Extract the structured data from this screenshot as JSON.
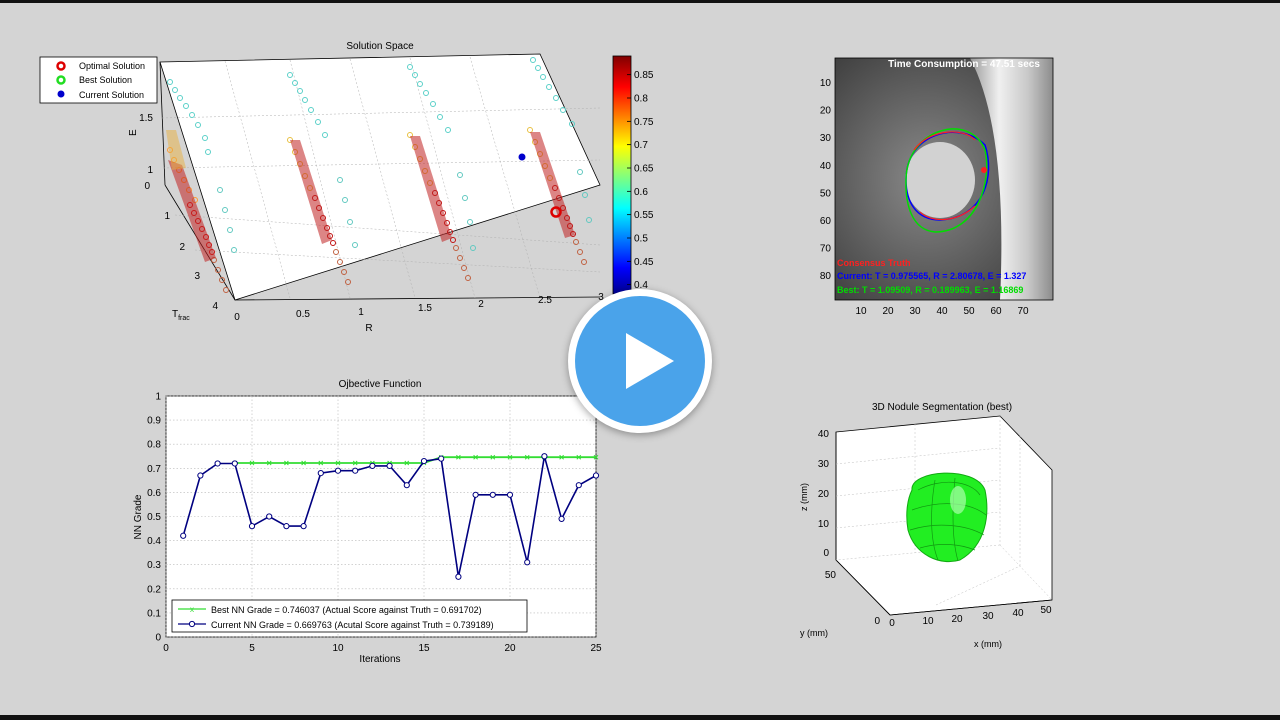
{
  "solution_space": {
    "title": "Solution Space",
    "ylabel": "E",
    "xlabel": "R",
    "tlabel_main": "T",
    "tlabel_sub": "frac",
    "e_ticks": [
      "1.5",
      "1"
    ],
    "t_ticks": [
      "0",
      "1",
      "2",
      "3",
      "4"
    ],
    "r_ticks": [
      "0",
      "0.5",
      "1",
      "1.5",
      "2",
      "2.5",
      "3"
    ],
    "legend": [
      {
        "label": "Optimal Solution",
        "color": "#dd0000"
      },
      {
        "label": "Best Solution",
        "color": "#22dd22"
      },
      {
        "label": "Current Solution",
        "color": "#0000cc"
      }
    ],
    "colorbar_ticks": [
      "0.85",
      "0.8",
      "0.75",
      "0.7",
      "0.65",
      "0.6",
      "0.55",
      "0.5",
      "0.45",
      "0.4"
    ],
    "colorbar_min": 0.38,
    "colorbar_max": 0.89
  },
  "ct_view": {
    "title": "Time Consumption = 47.51 secs",
    "y_ticks": [
      "10",
      "20",
      "30",
      "40",
      "50",
      "60",
      "70",
      "80"
    ],
    "x_ticks": [
      "10",
      "20",
      "30",
      "40",
      "50",
      "60",
      "70"
    ],
    "truth_label": "Consensus Truth",
    "current_label": "Current:  T = 0.975565, R = 2.80678, E = 1.327",
    "best_label": "Best:    T = 1.09509, R = 0.189963, E = 1.16869",
    "truth_color": "#ff2020",
    "current_color": "#0000ff",
    "best_color": "#00dd00"
  },
  "nodule_3d": {
    "title": "3D Nodule Segmentation (best)",
    "zlabel": "z (mm)",
    "ylabel": "y (mm)",
    "xlabel": "x (mm)",
    "z_ticks": [
      "40",
      "30",
      "20",
      "10",
      "0"
    ],
    "y_ticks": [
      "50",
      "0"
    ],
    "x_ticks": [
      "0",
      "10",
      "20",
      "30",
      "40",
      "50"
    ],
    "nodule_color": "#22ee22"
  },
  "chart_data": {
    "type": "line",
    "title": "Ojbective Function",
    "xlabel": "Iterations",
    "ylabel": "NN Grade",
    "xlim": [
      0,
      25
    ],
    "ylim": [
      0,
      1
    ],
    "x_ticks": [
      "0",
      "5",
      "10",
      "15",
      "20",
      "25"
    ],
    "y_ticks": [
      "0",
      "0.1",
      "0.2",
      "0.3",
      "0.4",
      "0.5",
      "0.6",
      "0.7",
      "0.8",
      "0.9",
      "1"
    ],
    "grid": true,
    "legend_position": "bottom-left",
    "series": [
      {
        "name": "Best NN Grade = 0.746037 (Actual Score against Truth = 0.691702)",
        "color": "#33dd33",
        "marker": "x",
        "x": [
          4,
          5,
          6,
          7,
          8,
          9,
          10,
          11,
          12,
          13,
          14,
          15,
          16,
          17,
          18,
          19,
          20,
          21,
          22,
          23,
          24,
          25
        ],
        "values": [
          0.722,
          0.722,
          0.722,
          0.722,
          0.722,
          0.722,
          0.722,
          0.722,
          0.722,
          0.722,
          0.722,
          0.722,
          0.746,
          0.746,
          0.746,
          0.746,
          0.746,
          0.746,
          0.746,
          0.746,
          0.746,
          0.746
        ]
      },
      {
        "name": "Current NN Grade = 0.669763 (Acutal Score against Truth = 0.739189)",
        "color": "#000080",
        "marker": "o",
        "x": [
          1,
          2,
          3,
          4,
          5,
          6,
          7,
          8,
          9,
          10,
          11,
          12,
          13,
          14,
          15,
          16,
          17,
          18,
          19,
          20,
          21,
          22,
          23,
          24,
          25
        ],
        "values": [
          0.42,
          0.67,
          0.72,
          0.72,
          0.46,
          0.5,
          0.46,
          0.46,
          0.68,
          0.69,
          0.69,
          0.71,
          0.71,
          0.63,
          0.73,
          0.74,
          0.25,
          0.59,
          0.59,
          0.59,
          0.31,
          0.75,
          0.49,
          0.63,
          0.67
        ]
      }
    ]
  }
}
